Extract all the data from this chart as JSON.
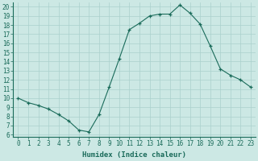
{
  "x": [
    0,
    1,
    2,
    3,
    4,
    5,
    6,
    7,
    8,
    9,
    10,
    11,
    12,
    13,
    14,
    15,
    16,
    17,
    18,
    19,
    20,
    21,
    22,
    23
  ],
  "y": [
    10,
    9.5,
    9.2,
    8.8,
    8.2,
    7.5,
    6.5,
    6.3,
    8.2,
    11.2,
    14.3,
    17.5,
    18.2,
    19.0,
    19.2,
    19.2,
    20.2,
    19.3,
    18.1,
    15.7,
    13.2,
    12.5,
    12.0,
    11.2
  ],
  "xlabel": "Humidex (Indice chaleur)",
  "xlim": [
    -0.5,
    23.5
  ],
  "ylim": [
    5.8,
    20.5
  ],
  "yticks": [
    6,
    7,
    8,
    9,
    10,
    11,
    12,
    13,
    14,
    15,
    16,
    17,
    18,
    19,
    20
  ],
  "xticks": [
    0,
    1,
    2,
    3,
    4,
    5,
    6,
    7,
    8,
    9,
    10,
    11,
    12,
    13,
    14,
    15,
    16,
    17,
    18,
    19,
    20,
    21,
    22,
    23
  ],
  "line_color": "#1a6b5a",
  "marker": "+",
  "bg_color": "#cce8e4",
  "grid_color": "#aad0cc",
  "label_fontsize": 6.5,
  "tick_fontsize": 5.5
}
